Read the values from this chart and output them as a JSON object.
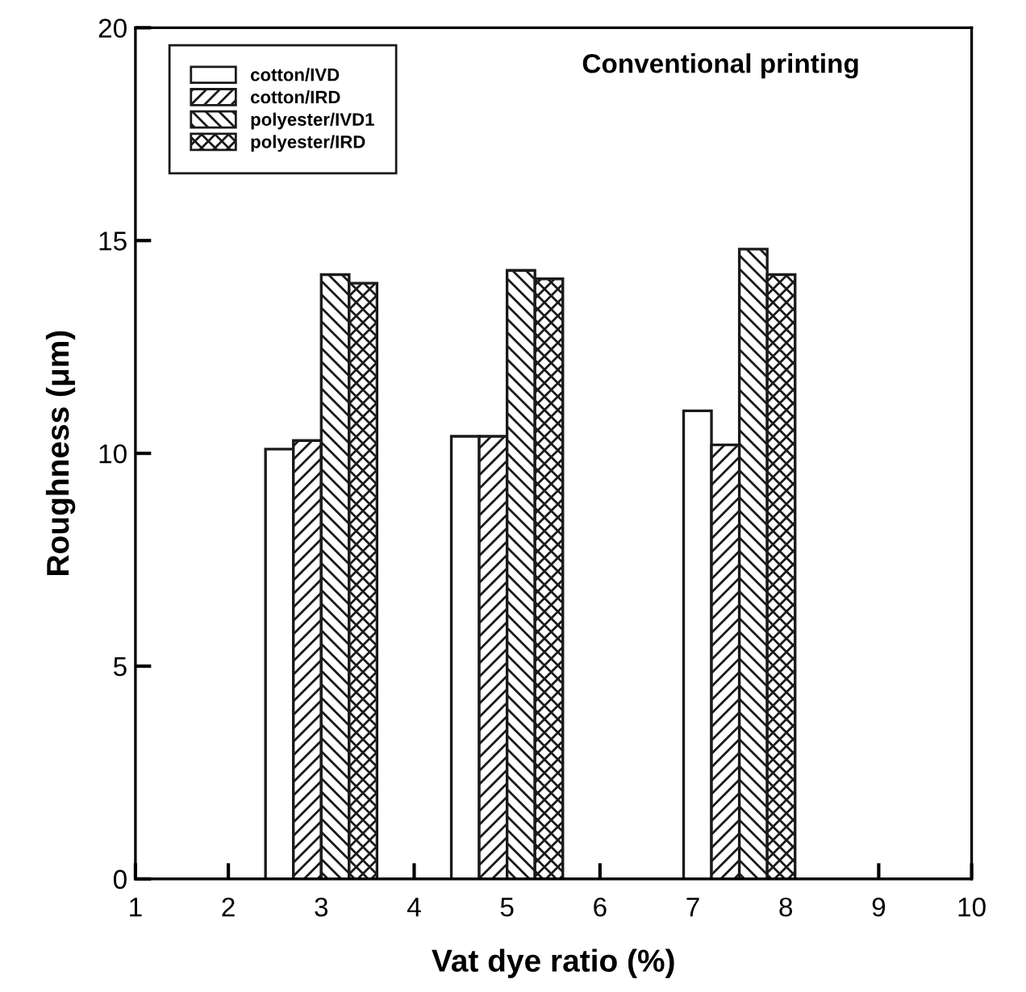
{
  "chart_data": {
    "type": "bar",
    "title": "Conventional printing",
    "xlabel": "Vat dye ratio (%)",
    "ylabel": "Roughness (μm)",
    "series": [
      {
        "name": "cotton/IVD",
        "color": "#ffffff",
        "x": [
          2.55,
          4.55,
          7.05
        ],
        "values": [
          10.1,
          10.4,
          11.0
        ]
      },
      {
        "name": "cotton/IRD",
        "color": "#1a1a1a",
        "x": [
          2.85,
          4.85,
          7.35
        ],
        "values": [
          10.3,
          10.4,
          10.2
        ]
      },
      {
        "name": "polyester/IVD1",
        "color": "#1a1a1a",
        "x": [
          3.15,
          5.15,
          7.65
        ],
        "values": [
          14.2,
          14.3,
          14.8
        ]
      },
      {
        "name": "polyester/IRD",
        "color": "#1a1a1a",
        "x": [
          3.45,
          5.45,
          7.95
        ],
        "values": [
          14.0,
          14.1,
          14.2
        ]
      }
    ],
    "xlim": [
      1,
      10
    ],
    "xticks": [
      1,
      2,
      3,
      4,
      5,
      6,
      7,
      8,
      9,
      10
    ],
    "ylim": [
      0,
      20
    ],
    "yticks": [
      0,
      5,
      10,
      15,
      20
    ],
    "grid": false,
    "legend": "top left"
  }
}
